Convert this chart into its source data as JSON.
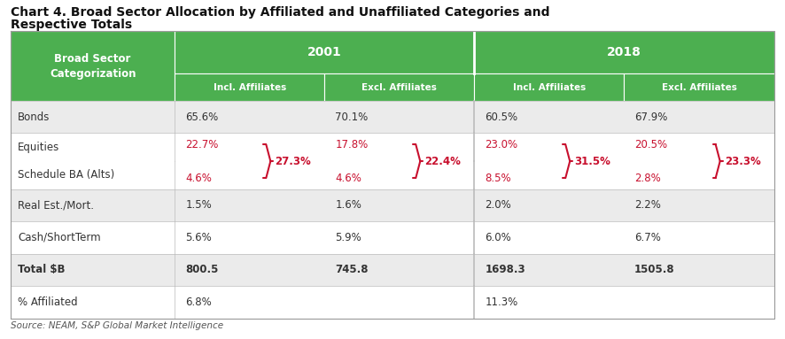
{
  "title_line1": "Chart 4. Broad Sector Allocation by Affiliated and Unaffiliated Categories and",
  "title_line2": "Respective Totals",
  "source": "Source: NEAM, S&P Global Market Intelligence",
  "green_color": "#4CAF50",
  "red_color": "#C8102E",
  "white": "#FFFFFF",
  "text_dark": "#333333",
  "row_bg_light": "#EBEBEB",
  "row_bg_white": "#FFFFFF",
  "col_header": "Broad Sector\nCategorization",
  "sub_headers": [
    "Incl. Affiliates",
    "Excl. Affiliates",
    "Incl. Affiliates",
    "Excl. Affiliates"
  ],
  "rows": [
    {
      "label": "Bonds",
      "values": [
        "65.6%",
        "70.1%",
        "60.5%",
        "67.9%"
      ],
      "bold": false,
      "red": [
        false,
        false,
        false,
        false
      ],
      "bg": "light"
    },
    {
      "label": "Equities",
      "values": [
        "22.7%",
        "17.8%",
        "23.0%",
        "20.5%"
      ],
      "bold": false,
      "red": [
        true,
        true,
        true,
        true
      ],
      "bg": "white",
      "merged_top": true
    },
    {
      "label": "Schedule BA (Alts)",
      "values": [
        "4.6%",
        "4.6%",
        "8.5%",
        "2.8%"
      ],
      "bold": false,
      "red": [
        true,
        true,
        true,
        true
      ],
      "bg": "white",
      "merged_bot": true
    },
    {
      "label": "Real Est./Mort.",
      "values": [
        "1.5%",
        "1.6%",
        "2.0%",
        "2.2%"
      ],
      "bold": false,
      "red": [
        false,
        false,
        false,
        false
      ],
      "bg": "light"
    },
    {
      "label": "Cash/ShortTerm",
      "values": [
        "5.6%",
        "5.9%",
        "6.0%",
        "6.7%"
      ],
      "bold": false,
      "red": [
        false,
        false,
        false,
        false
      ],
      "bg": "white"
    },
    {
      "label": "Total $B",
      "values": [
        "800.5",
        "745.8",
        "1698.3",
        "1505.8"
      ],
      "bold": true,
      "red": [
        false,
        false,
        false,
        false
      ],
      "bg": "light"
    },
    {
      "label": "% Affiliated",
      "values": [
        "6.8%",
        "",
        "11.3%",
        ""
      ],
      "bold": false,
      "red": [
        false,
        false,
        false,
        false
      ],
      "bg": "white"
    }
  ],
  "brace_cols": [
    0,
    1,
    2,
    3
  ],
  "brace_texts": [
    "27.3%",
    "22.4%",
    "31.5%",
    "23.3%"
  ]
}
